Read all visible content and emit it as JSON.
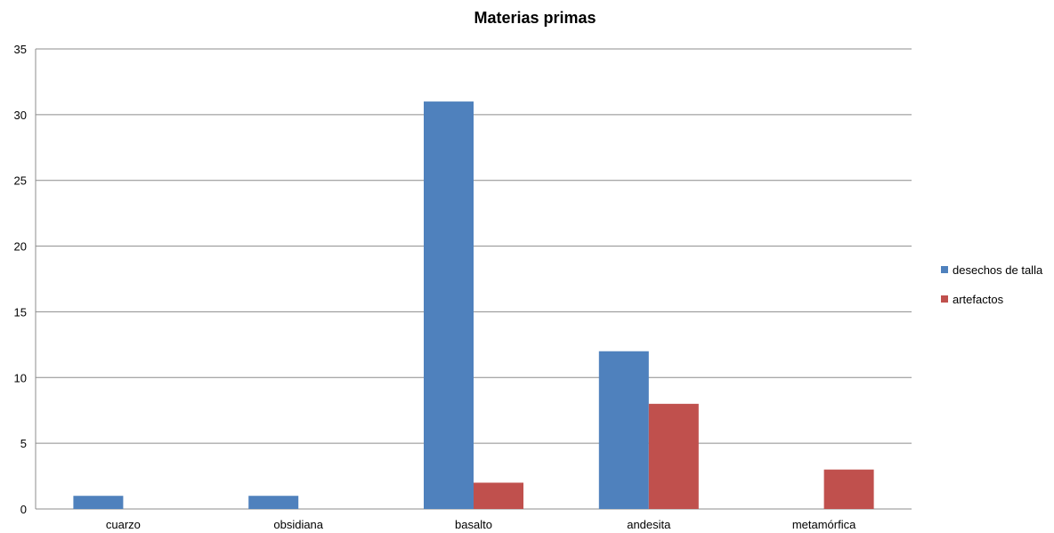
{
  "chart_data": {
    "type": "bar",
    "title": "Materias primas",
    "xlabel": "",
    "ylabel": "",
    "categories": [
      "cuarzo",
      "obsidiana",
      "basalto",
      "andesita",
      "metamórfica"
    ],
    "series": [
      {
        "name": "desechos de talla",
        "color": "#4F81BD",
        "values": [
          1,
          1,
          31,
          12,
          0
        ]
      },
      {
        "name": "artefactos",
        "color": "#C0504D",
        "values": [
          0,
          0,
          2,
          8,
          3
        ]
      }
    ],
    "ylim": [
      0,
      35
    ],
    "y_ticks": [
      0,
      5,
      10,
      15,
      20,
      25,
      30,
      35
    ],
    "grid": true,
    "legend_position": "right"
  }
}
